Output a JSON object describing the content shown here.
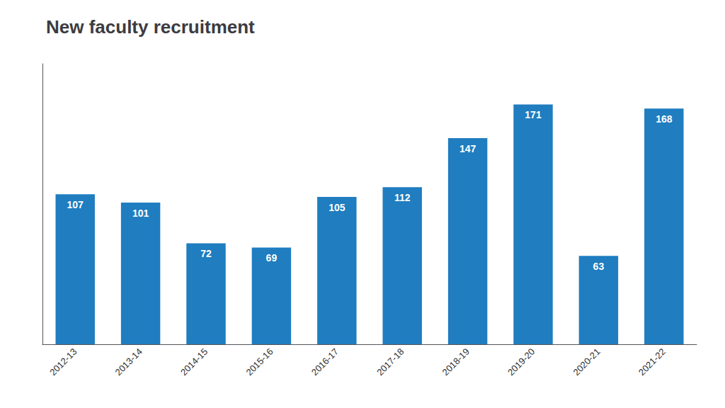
{
  "chart_data": {
    "type": "bar",
    "title": "New faculty recruitment",
    "categories": [
      "2012-13",
      "2013-14",
      "2014-15",
      "2015-16",
      "2016-17",
      "2017-18",
      "2018-19",
      "2019-20",
      "2020-21",
      "2021-22"
    ],
    "values": [
      107,
      101,
      72,
      69,
      105,
      112,
      147,
      171,
      63,
      168
    ],
    "color": "#1F7DC0",
    "ylim": [
      0,
      200
    ],
    "grid": false,
    "data_labels": true,
    "tick_labels": "x"
  }
}
